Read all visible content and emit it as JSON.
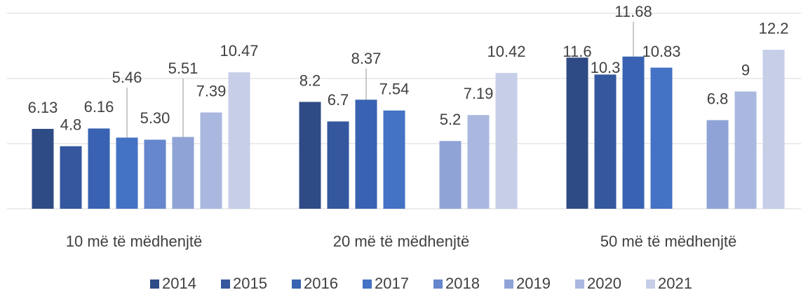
{
  "chart_data": {
    "type": "bar",
    "categories": [
      "10 më të mëdhenjtë",
      "20 më të mëdhenjtë",
      "50 më të mëdhenjtë"
    ],
    "series": [
      {
        "name": "2014",
        "color": "#2f4b86",
        "values": [
          6.13,
          8.2,
          11.6
        ]
      },
      {
        "name": "2015",
        "color": "#34579e",
        "values": [
          4.8,
          6.7,
          10.3
        ]
      },
      {
        "name": "2016",
        "color": "#3963b2",
        "values": [
          6.16,
          8.37,
          11.68
        ]
      },
      {
        "name": "2017",
        "color": "#4472c4",
        "values": [
          5.46,
          7.54,
          10.83
        ]
      },
      {
        "name": "2018",
        "color": "#6686cd",
        "values": [
          5.3,
          null,
          null
        ],
        "value_labels": [
          "5.30",
          null,
          null
        ]
      },
      {
        "name": "2019",
        "color": "#8fa3d6",
        "values": [
          5.51,
          5.2,
          6.8
        ]
      },
      {
        "name": "2020",
        "color": "#aab8e0",
        "values": [
          7.39,
          7.19,
          9
        ]
      },
      {
        "name": "2021",
        "color": "#c6cee8",
        "values": [
          10.47,
          10.42,
          12.2
        ]
      }
    ],
    "ylim": [
      0,
      15
    ],
    "yticks": [
      0,
      5,
      10,
      15
    ],
    "grid": true,
    "legend": "bottom"
  }
}
